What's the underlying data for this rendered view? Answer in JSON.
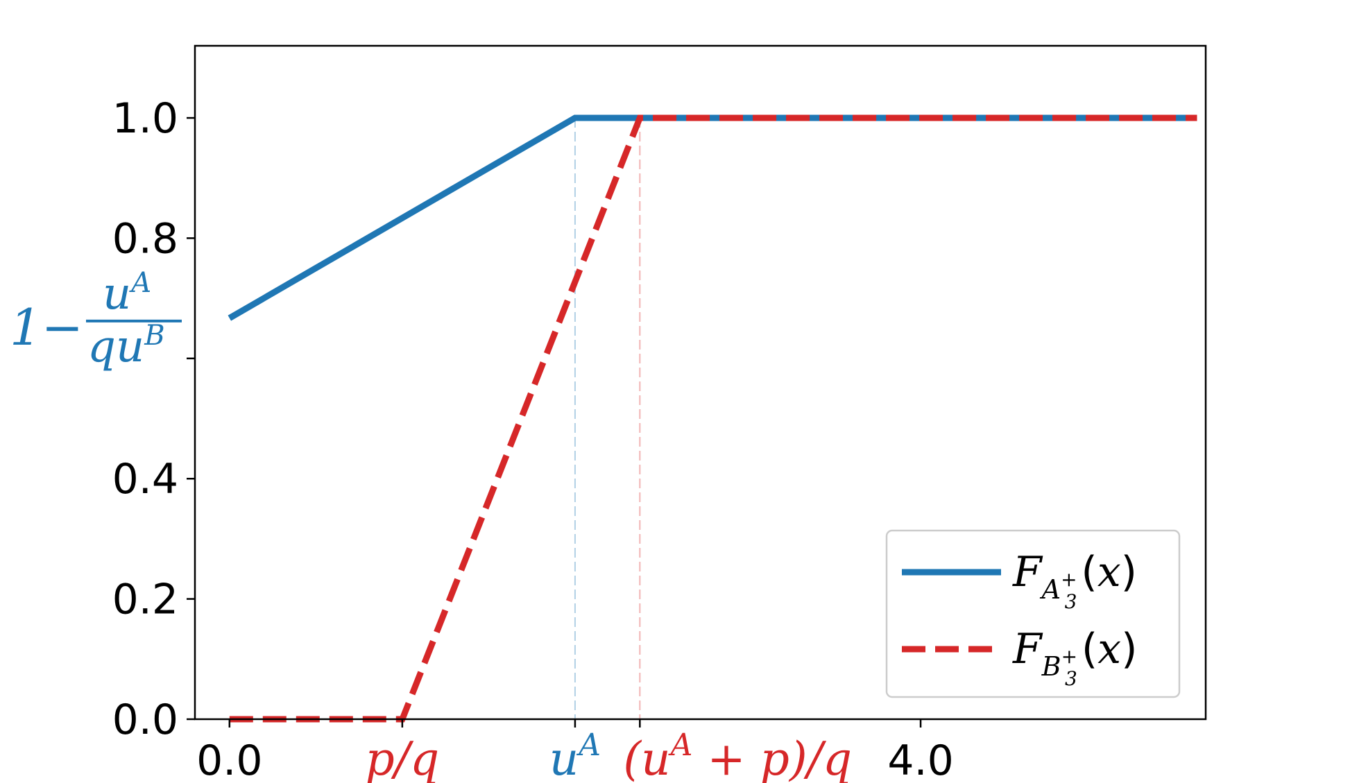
{
  "chart_data": {
    "type": "line",
    "title": "",
    "xlabel": "",
    "ylabel": "",
    "xlim": [
      -0.2,
      5.65
    ],
    "ylim": [
      0.0,
      1.12
    ],
    "grid": false,
    "legend_position": "lower-right",
    "x_ticks": [
      {
        "value": 0.0,
        "label": "0.0",
        "color": "#000000",
        "math": false
      },
      {
        "value": 1.0,
        "label": "p/q",
        "color": "#d62728",
        "math": true
      },
      {
        "value": 2.0,
        "label": "u^A",
        "color": "#1f77b4",
        "math": true
      },
      {
        "value": 2.375,
        "label": "(u^A + p)/q",
        "color": "#d62728",
        "math": true
      },
      {
        "value": 4.0,
        "label": "4.0",
        "color": "#000000",
        "math": false
      }
    ],
    "y_ticks": [
      {
        "value": 0.0,
        "label": "0.0",
        "color": "#000000",
        "math": false
      },
      {
        "value": 0.2,
        "label": "0.2",
        "color": "#000000",
        "math": false
      },
      {
        "value": 0.4,
        "label": "0.4",
        "color": "#000000",
        "math": false
      },
      {
        "value": 0.6,
        "label": "1 - u^A / (q u^B)",
        "color": "#1f77b4",
        "math": true
      },
      {
        "value": 0.8,
        "label": "0.8",
        "color": "#000000",
        "math": false
      },
      {
        "value": 1.0,
        "label": "1.0",
        "color": "#000000",
        "math": false
      }
    ],
    "vlines": [
      {
        "x": 2.0,
        "color": "#1f77b4"
      },
      {
        "x": 2.375,
        "color": "#d62728"
      }
    ],
    "series": [
      {
        "name": "F_{A_3^+}(x)",
        "color": "#1f77b4",
        "style": "solid",
        "x": [
          0.0,
          2.0,
          5.6
        ],
        "y": [
          0.667,
          1.0,
          1.0
        ]
      },
      {
        "name": "F_{B_3^+}(x)",
        "color": "#d62728",
        "style": "dashed",
        "x": [
          0.0,
          1.0,
          2.375,
          5.6
        ],
        "y": [
          0.0,
          0.0,
          1.0,
          1.0
        ]
      }
    ]
  }
}
